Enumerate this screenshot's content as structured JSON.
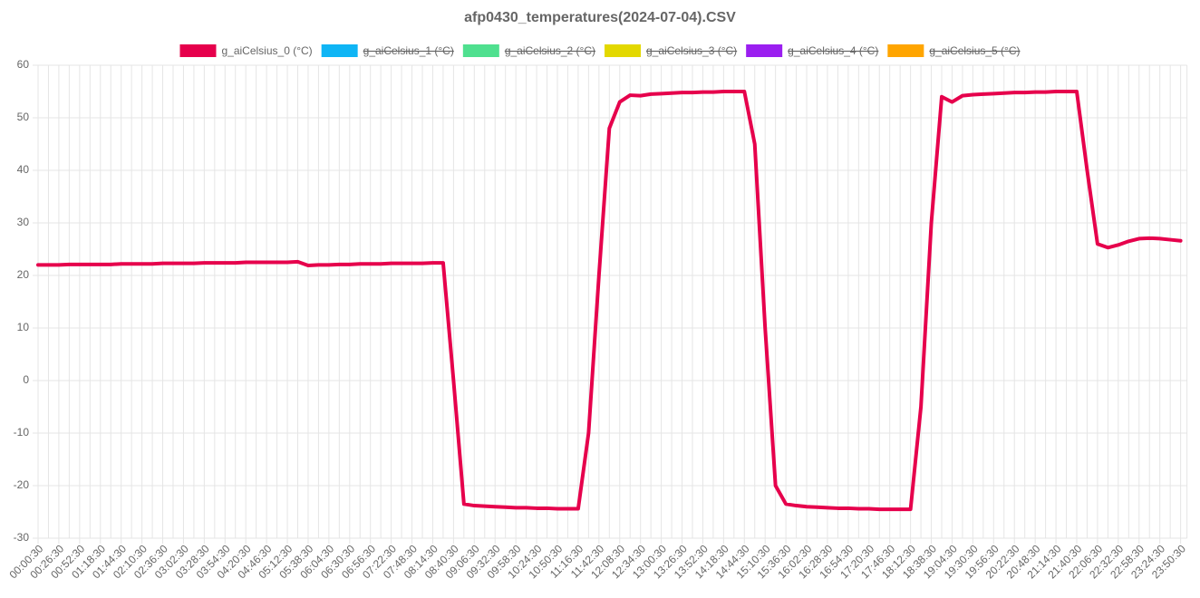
{
  "chart_data": {
    "type": "line",
    "title": "afp0430_temperatures(2024-07-04).CSV",
    "categories": [
      "00:00:30",
      null,
      "00:26:30",
      null,
      "00:52:30",
      null,
      "01:18:30",
      null,
      "01:44:30",
      null,
      "02:10:30",
      null,
      "02:36:30",
      null,
      "03:02:30",
      null,
      "03:28:30",
      null,
      "03:54:30",
      null,
      "04:20:30",
      null,
      "04:46:30",
      null,
      "05:12:30",
      null,
      "05:38:30",
      null,
      "06:04:30",
      null,
      "06:30:30",
      null,
      "06:56:30",
      null,
      "07:22:30",
      null,
      "07:48:30",
      null,
      "08:14:30",
      null,
      "08:40:30",
      null,
      "09:06:30",
      null,
      "09:32:30",
      null,
      "09:58:30",
      null,
      "10:24:30",
      null,
      "10:50:30",
      null,
      "11:16:30",
      null,
      "11:42:30",
      null,
      "12:08:30",
      null,
      "12:34:30",
      null,
      "13:00:30",
      null,
      "13:26:30",
      null,
      "13:52:30",
      null,
      "14:18:30",
      null,
      "14:44:30",
      null,
      "15:10:30",
      null,
      "15:36:30",
      null,
      "16:02:30",
      null,
      "16:28:30",
      null,
      "16:54:30",
      null,
      "17:20:30",
      null,
      "17:46:30",
      null,
      "18:12:30",
      null,
      "18:38:30",
      null,
      "19:04:30",
      null,
      "19:30:30",
      null,
      "19:56:30",
      null,
      "20:22:30",
      null,
      "20:48:30",
      null,
      "21:14:30",
      null,
      "21:40:30",
      null,
      "22:06:30",
      null,
      "22:32:30",
      null,
      "22:58:30",
      null,
      "23:24:30",
      null,
      "23:50:30"
    ],
    "series": [
      {
        "name": "g_aiCelsius_0 (°C)",
        "color": "#e6004c",
        "hidden": false,
        "values": [
          22.0,
          22.0,
          22.0,
          22.1,
          22.1,
          22.1,
          22.1,
          22.1,
          22.2,
          22.2,
          22.2,
          22.2,
          22.3,
          22.3,
          22.3,
          22.3,
          22.4,
          22.4,
          22.4,
          22.4,
          22.5,
          22.5,
          22.5,
          22.5,
          22.5,
          22.6,
          21.9,
          22.0,
          22.0,
          22.1,
          22.1,
          22.2,
          22.2,
          22.2,
          22.3,
          22.3,
          22.3,
          22.3,
          22.4,
          22.4,
          0,
          -23.5,
          -23.8,
          -23.9,
          -24.0,
          -24.1,
          -24.2,
          -24.2,
          -24.3,
          -24.3,
          -24.4,
          -24.4,
          -24.4,
          -10,
          20,
          48,
          53,
          54.3,
          54.2,
          54.5,
          54.6,
          54.7,
          54.8,
          54.8,
          54.9,
          54.9,
          55,
          55,
          55,
          45,
          10,
          -20,
          -23.5,
          -23.8,
          -24.0,
          -24.1,
          -24.2,
          -24.3,
          -24.3,
          -24.4,
          -24.4,
          -24.5,
          -24.5,
          -24.5,
          -24.5,
          -5,
          30,
          54,
          53,
          54.2,
          54.4,
          54.5,
          54.6,
          54.7,
          54.8,
          54.8,
          54.9,
          54.9,
          55,
          55,
          55,
          40,
          26,
          25.3,
          25.8,
          26.5,
          27,
          27.1,
          27,
          26.8,
          26.6
        ]
      },
      {
        "name": "g_aiCelsius_1 (°C)",
        "color": "#0fb5f5",
        "hidden": true
      },
      {
        "name": "g_aiCelsius_2 (°C)",
        "color": "#4fe08f",
        "hidden": true
      },
      {
        "name": "g_aiCelsius_3 (°C)",
        "color": "#e3d800",
        "hidden": true
      },
      {
        "name": "g_aiCelsius_4 (°C)",
        "color": "#9b1ff0",
        "hidden": true
      },
      {
        "name": "g_aiCelsius_5 (°C)",
        "color": "#ffa500",
        "hidden": true
      }
    ],
    "ylim": [
      -30,
      60
    ],
    "yticks": [
      -30,
      -20,
      -10,
      0,
      10,
      20,
      30,
      40,
      50,
      60
    ],
    "grid": true
  }
}
